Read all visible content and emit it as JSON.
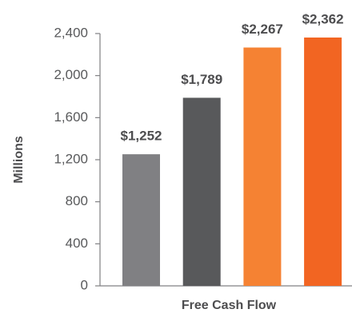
{
  "chart_data": {
    "type": "bar",
    "x_label": "Free Cash Flow",
    "y_label": "Millions",
    "categories": [
      null,
      null,
      null,
      null
    ],
    "values": [
      1252,
      1789,
      2267,
      2362
    ],
    "value_labels": [
      "$1,252",
      "$1,789",
      "$2,267",
      "$2,362"
    ],
    "colors": [
      "#808083",
      "#58595b",
      "#f58233",
      "#f26522"
    ],
    "ylim": [
      0,
      2400
    ],
    "yticks": [
      0,
      400,
      800,
      {
        "value": 1200,
        "label": "1,200"
      },
      {
        "value": 1600,
        "label": "1,600"
      },
      {
        "value": 2000,
        "label": "2,000"
      },
      {
        "value": 2400,
        "label": "2,400"
      }
    ],
    "grid": false
  }
}
